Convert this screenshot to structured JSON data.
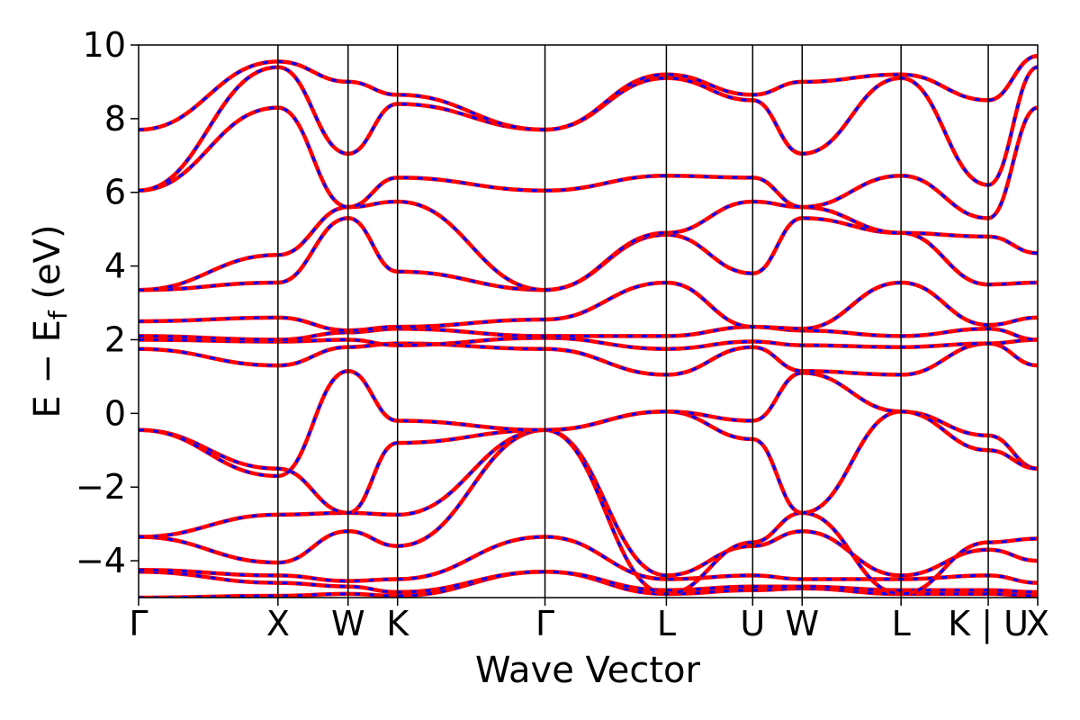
{
  "chart_data": {
    "type": "line",
    "title": "",
    "xlabel": "Wave Vector",
    "ylabel": "E − E",
    "ylabel_subscript": "f",
    "ylabel_unit": " (eV)",
    "ylim": [
      -5,
      10
    ],
    "yticks": [
      -4,
      -2,
      0,
      2,
      4,
      6,
      8,
      10
    ],
    "ytick_labels": [
      "−4",
      "−2",
      "0",
      "2",
      "4",
      "6",
      "8",
      "10"
    ],
    "xlim": [
      0,
      1
    ],
    "kpoints": [
      {
        "label": "Γ",
        "x": 0.0
      },
      {
        "label": "X",
        "x": 0.155
      },
      {
        "label": "W",
        "x": 0.233
      },
      {
        "label": "K",
        "x": 0.288
      },
      {
        "label": "Γ",
        "x": 0.452
      },
      {
        "label": "L",
        "x": 0.587
      },
      {
        "label": "U",
        "x": 0.683
      },
      {
        "label": "W",
        "x": 0.738
      },
      {
        "label": "L",
        "x": 0.848
      },
      {
        "label": "K | U",
        "x": 0.945
      },
      {
        "label": "X",
        "x": 1.0
      }
    ],
    "series_style": [
      {
        "color": "#ff0000",
        "style": "solid"
      },
      {
        "color": "#0000ff",
        "style": "dashed"
      }
    ],
    "bands_energy_at_kpoints": [
      [
        -5.0,
        -4.95,
        -4.9,
        -4.95,
        -4.3,
        -4.9,
        -4.8,
        -4.75,
        -4.9,
        -4.9,
        -4.95
      ],
      [
        -4.3,
        -4.6,
        -4.7,
        -4.85,
        -4.3,
        -4.8,
        -4.7,
        -4.7,
        -4.8,
        -4.8,
        -4.85
      ],
      [
        -4.25,
        -4.4,
        -4.55,
        -4.5,
        -3.35,
        -4.5,
        -4.4,
        -4.5,
        -4.5,
        -4.4,
        -4.6
      ],
      [
        -3.35,
        -4.05,
        -3.2,
        -3.6,
        -0.45,
        -4.4,
        -3.6,
        -3.2,
        -4.4,
        -3.7,
        -4.0
      ],
      [
        -3.35,
        -2.75,
        -2.7,
        -2.75,
        -0.45,
        -4.9,
        -3.5,
        -2.7,
        -4.9,
        -3.5,
        -3.4
      ],
      [
        -0.45,
        -1.5,
        -2.7,
        -0.8,
        -0.45,
        0.05,
        -0.7,
        -2.7,
        0.05,
        -0.6,
        -1.5
      ],
      [
        -0.45,
        -1.7,
        1.15,
        -0.2,
        -0.45,
        0.05,
        -0.2,
        1.1,
        0.05,
        -1.0,
        -1.5
      ],
      [
        1.75,
        1.3,
        1.8,
        1.9,
        1.75,
        1.05,
        1.8,
        1.15,
        1.05,
        1.9,
        1.3
      ],
      [
        2.0,
        1.95,
        2.0,
        1.85,
        2.05,
        1.75,
        1.95,
        1.85,
        1.8,
        1.9,
        2.0
      ],
      [
        2.1,
        2.0,
        2.2,
        2.3,
        2.1,
        2.1,
        2.35,
        2.25,
        2.1,
        2.3,
        2.0
      ],
      [
        2.5,
        2.6,
        2.25,
        2.35,
        2.55,
        3.55,
        2.35,
        2.3,
        3.55,
        2.4,
        2.6
      ],
      [
        3.35,
        3.55,
        5.3,
        3.85,
        3.35,
        4.85,
        3.8,
        5.3,
        4.9,
        3.5,
        3.55
      ],
      [
        3.35,
        4.3,
        5.6,
        5.75,
        3.35,
        4.9,
        5.75,
        5.6,
        4.9,
        4.8,
        4.35
      ],
      [
        6.05,
        8.3,
        5.6,
        6.4,
        6.05,
        6.45,
        6.4,
        5.6,
        6.45,
        5.3,
        8.3
      ],
      [
        6.05,
        9.4,
        7.05,
        8.4,
        7.7,
        9.1,
        8.5,
        7.05,
        9.1,
        6.2,
        9.4
      ],
      [
        7.7,
        9.55,
        9.0,
        8.65,
        7.7,
        9.2,
        8.65,
        9.0,
        9.2,
        8.5,
        9.7
      ]
    ]
  }
}
